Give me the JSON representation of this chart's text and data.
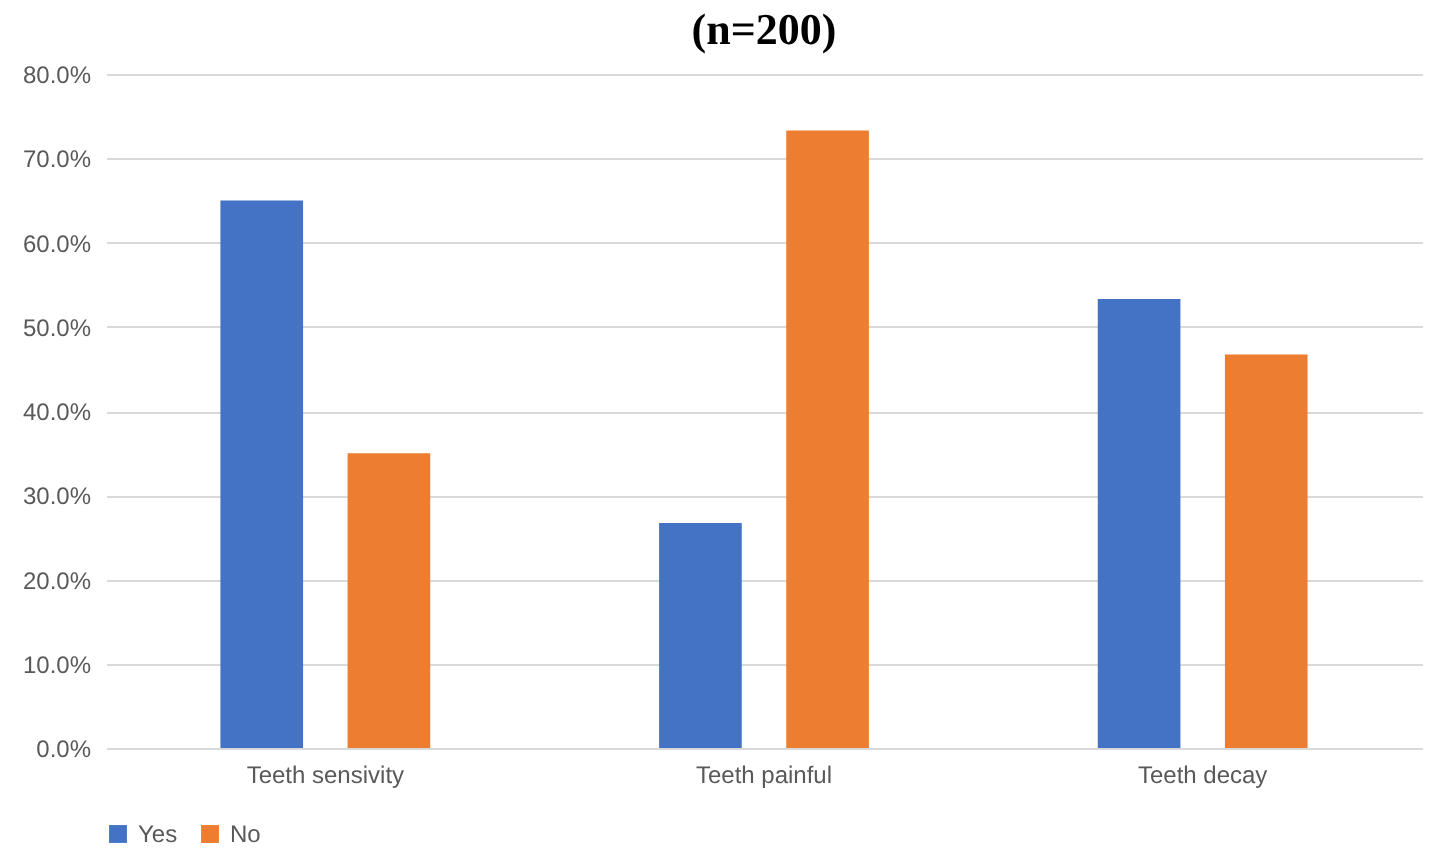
{
  "chart_data": {
    "type": "bar",
    "title": "(n=200)",
    "categories": [
      "Teeth sensivity",
      "Teeth painful",
      "Teeth decay"
    ],
    "series": [
      {
        "name": "Yes",
        "color": "#4472c4",
        "values": [
          65.0,
          26.7,
          53.3
        ]
      },
      {
        "name": "No",
        "color": "#ed7d31",
        "values": [
          35.0,
          73.3,
          46.7
        ]
      }
    ],
    "ylim": [
      0,
      80
    ],
    "yticks": [
      {
        "value": 0,
        "label": "0.0%"
      },
      {
        "value": 10,
        "label": "10.0%"
      },
      {
        "value": 20,
        "label": "20.0%"
      },
      {
        "value": 30,
        "label": "30.0%"
      },
      {
        "value": 40,
        "label": "40.0%"
      },
      {
        "value": 50,
        "label": "50.0%"
      },
      {
        "value": 60,
        "label": "60.0%"
      },
      {
        "value": 70,
        "label": "70.0%"
      },
      {
        "value": 80,
        "label": "80.0%"
      }
    ],
    "grid": "y",
    "legend": "bottom"
  }
}
